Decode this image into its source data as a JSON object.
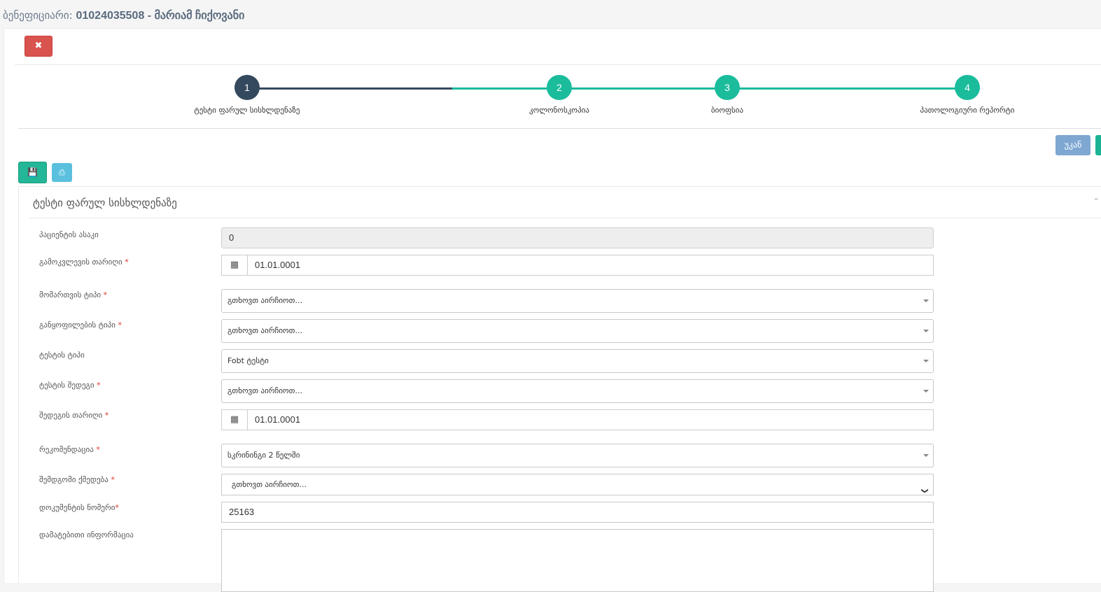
{
  "header": {
    "label": "ბენეფიციარი:",
    "value": "01024035508 - მარიამ ჩიქოვანი"
  },
  "toolbar": {
    "close_icon": "times-icon",
    "back_label": "უკან",
    "save_icon": "floppy-icon",
    "print_icon": "print-icon"
  },
  "wizard": {
    "colors": {
      "done": "#34495e",
      "todo": "#1abc9c"
    },
    "steps": [
      {
        "num": "1",
        "label": "ტესტი ფარულ სისხლდენაზე"
      },
      {
        "num": "2",
        "label": "კოლონოსკოპია"
      },
      {
        "num": "3",
        "label": "ბიოფსია"
      },
      {
        "num": "4",
        "label": "პათოლოგიური რეპორტი"
      }
    ]
  },
  "form": {
    "title": "ტესტი ფარულ სისხლდენაზე",
    "fields": [
      {
        "label": "პაციენტის ასაკი",
        "value": "0"
      },
      {
        "label": "გამოკვლევის თარიღი",
        "required": "*",
        "value": "01.01.0001"
      },
      {
        "label": "მომართვის ტიპი",
        "required": "*",
        "value": "გთხოვთ აირჩიოთ..."
      },
      {
        "label": "განყოფილების ტიპი",
        "required": "*",
        "value": "გთხოვთ აირჩიოთ..."
      },
      {
        "label": "ტესტის ტიპი",
        "value": "Fobt ტესტი"
      },
      {
        "label": "ტესტის შედეგი",
        "required": "*",
        "value": "გთხოვთ აირჩიოთ..."
      },
      {
        "label": "შედეგის თარიღი",
        "required": "*",
        "value": "01.01.0001"
      },
      {
        "label": "რეკომენდაცია",
        "required": "*",
        "value": "სკრინინგი 2 წელში"
      },
      {
        "label": "შემდგომი ქმედება",
        "required": "*",
        "value": "გთხოვთ აირჩიოთ..."
      },
      {
        "label": "დოკუმენტის ნომერი",
        "required": "*",
        "value": "25163"
      },
      {
        "label": "დამატებითი ინფორმაცია",
        "value": ""
      }
    ]
  }
}
